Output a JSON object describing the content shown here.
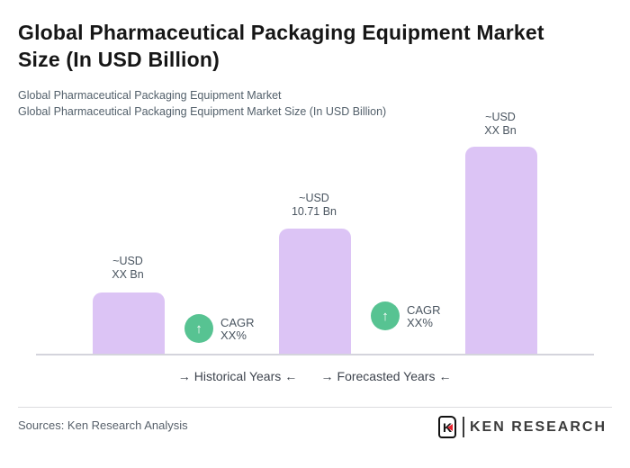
{
  "header": {
    "title_line1": "Global Pharmaceutical Packaging Equipment Market",
    "title_line2": "Size (In USD Billion)",
    "subtitle_line1": "Global Pharmaceutical Packaging Equipment Market",
    "subtitle_line2": "Global Pharmaceutical Packaging Equipment Market Size (In USD Billion)"
  },
  "chart_data": {
    "type": "bar",
    "title": "Global Pharmaceutical Packaging Equipment Market Size (In USD Billion)",
    "unit": "USD Bn",
    "bar_color": "#DCC4F5",
    "baseline_color": "#d4d4dc",
    "bars": [
      {
        "label_line1": "~USD",
        "label_line2": "XX Bn",
        "value_displayed": "XX",
        "value_estimated": 5.3
      },
      {
        "label_line1": "~USD",
        "label_line2": "10.71 Bn",
        "value_displayed": "10.71",
        "value_estimated": 10.71
      },
      {
        "label_line1": "~USD",
        "label_line2": "XX Bn",
        "value_displayed": "XX",
        "value_estimated": 17.6
      }
    ],
    "annotations": [
      {
        "icon": "up-arrow",
        "glyph": "↑",
        "line1": "CAGR",
        "line2": "XX%",
        "circle_color": "#57C392"
      },
      {
        "icon": "up-arrow",
        "glyph": "↑",
        "line1": "CAGR",
        "line2": "XX%",
        "circle_color": "#57C392"
      }
    ],
    "x_captions": [
      {
        "left_arrow": "→",
        "text": "Historical Years",
        "right_arrow": "←"
      },
      {
        "left_arrow": "→",
        "text": "Forecasted Years",
        "right_arrow": "←"
      }
    ],
    "legend_position": "none",
    "grid": false
  },
  "footer": {
    "sources": "Sources: Ken Research Analysis",
    "logo": {
      "emblem_letter": "K",
      "text": "KEN RESEARCH",
      "accent_color": "#e8212e"
    }
  }
}
